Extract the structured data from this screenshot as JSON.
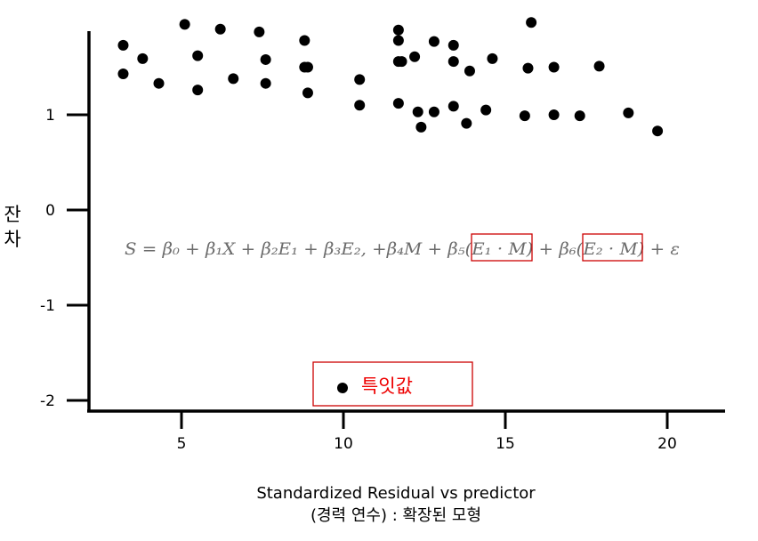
{
  "chart_data": {
    "type": "scatter",
    "title": "",
    "xlabel_line1": "Standardized Residual vs predictor",
    "xlabel_line2": "(경력 연수) : 확장된 모형",
    "ylabel": "잔\n차",
    "xlim": [
      2.5,
      21.5
    ],
    "ylim": [
      -2.15,
      1.95
    ],
    "x_ticks": [
      5,
      10,
      15,
      20
    ],
    "y_ticks": [
      1,
      0,
      -1,
      -2
    ],
    "y_tick_labels": [
      "1",
      "0",
      "-1",
      "-2"
    ],
    "grid": false,
    "formula": "S = β₀ + β₁X + β₂E₁ + β₃E₂, +β₄M + β₅(E₁ · M) + β₆(E₂ · M) + ε",
    "formula_highlights": [
      "E₁ · M",
      "E₂ · M"
    ],
    "highlight_color": "#cc0000",
    "formula_color": "#6b6b6b",
    "legend": {
      "label": "특잇값",
      "label_color": "#ee0000",
      "border_color": "#cc0000",
      "placement": "bottom-center"
    },
    "x": [
      3.2,
      3.2,
      3.8,
      4.3,
      5.1,
      5.5,
      5.5,
      6.2,
      6.6,
      7.4,
      7.6,
      7.6,
      8.8,
      8.8,
      8.9,
      8.9,
      10.5,
      10.5,
      11.7,
      11.7,
      11.7,
      11.7,
      11.8,
      12.2,
      12.3,
      12.4,
      12.8,
      12.8,
      13.4,
      13.4,
      13.4,
      13.8,
      13.9,
      14.4,
      14.6,
      15.6,
      15.7,
      15.8,
      16.5,
      16.5,
      17.3,
      17.9,
      18.8,
      19.7
    ],
    "y": [
      1.73,
      1.43,
      1.59,
      1.33,
      1.95,
      1.62,
      1.26,
      1.9,
      1.38,
      1.87,
      1.58,
      1.33,
      1.78,
      1.5,
      1.23,
      1.5,
      1.37,
      1.1,
      1.89,
      1.78,
      1.56,
      1.12,
      1.56,
      1.61,
      1.03,
      0.87,
      1.77,
      1.03,
      1.73,
      1.56,
      1.09,
      0.91,
      1.46,
      1.05,
      1.59,
      0.99,
      1.49,
      1.97,
      1.0,
      1.5,
      0.99,
      1.51,
      1.02,
      0.83
    ]
  }
}
